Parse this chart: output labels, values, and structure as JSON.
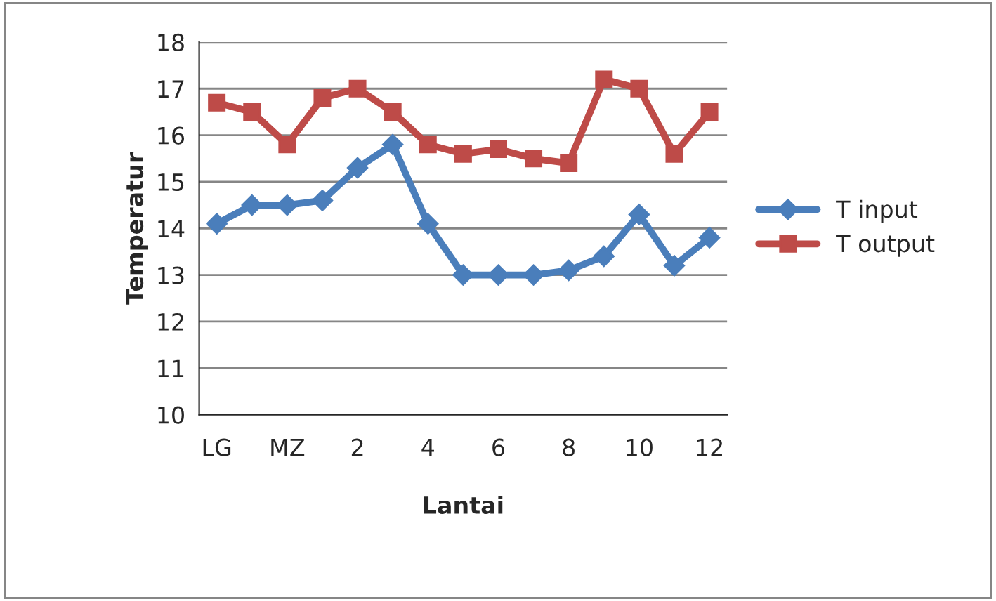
{
  "chart_data": {
    "type": "line",
    "xlabel": "Lantai",
    "ylabel": "Temperatur",
    "categories": [
      "LG",
      null,
      "MZ",
      null,
      "2",
      null,
      "4",
      null,
      "6",
      null,
      "8",
      null,
      "10",
      null,
      "12"
    ],
    "series": [
      {
        "name": "T input",
        "color": "#4a7ebb",
        "marker": "diamond",
        "values": [
          14.1,
          14.5,
          14.5,
          14.6,
          15.3,
          15.8,
          14.1,
          13.0,
          13.0,
          13.0,
          13.1,
          13.4,
          14.3,
          13.2,
          13.8
        ]
      },
      {
        "name": "T output",
        "color": "#be4b48",
        "marker": "square",
        "values": [
          16.7,
          16.5,
          15.8,
          16.8,
          17.0,
          16.5,
          15.8,
          15.6,
          15.7,
          15.5,
          15.4,
          17.2,
          17.0,
          15.6,
          16.5
        ]
      }
    ],
    "ylim": [
      10,
      18
    ],
    "yticks": [
      10,
      11,
      12,
      13,
      14,
      15,
      16,
      17,
      18
    ],
    "grid": "y",
    "legend": "right",
    "line_style": "solid"
  }
}
